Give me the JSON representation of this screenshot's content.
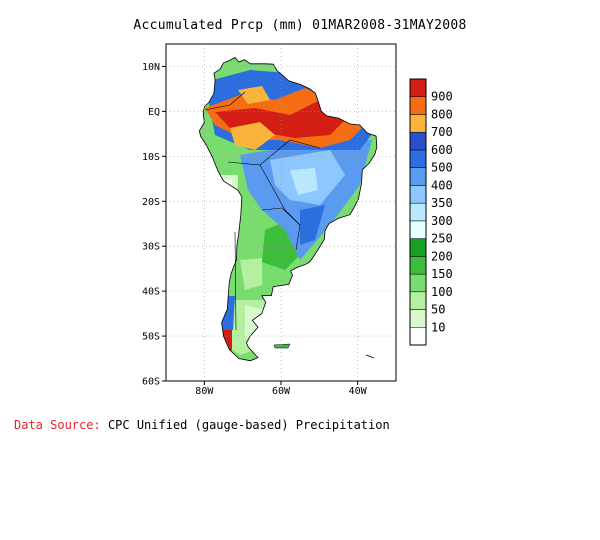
{
  "title": "Accumulated Prcp (mm) 01MAR2008-31MAY2008",
  "lat_labels": [
    "10N",
    "EQ",
    "10S",
    "20S",
    "30S",
    "40S",
    "50S",
    "60S"
  ],
  "lon_labels": [
    "80W",
    "60W",
    "40W"
  ],
  "legend": {
    "levels": [
      "10",
      "50",
      "100",
      "150",
      "200",
      "250",
      "300",
      "350",
      "400",
      "500",
      "600",
      "700",
      "800",
      "900"
    ],
    "colors": [
      "#ffffff",
      "#d7f9cb",
      "#b4f0a0",
      "#78dc6e",
      "#3cbe3c",
      "#19a024",
      "#e6ffff",
      "#bae8ff",
      "#8cc8ff",
      "#5a9bf0",
      "#2d6ede",
      "#2850c8",
      "#fab43c",
      "#f56e14",
      "#d21e14"
    ]
  },
  "data_source": {
    "label": "Data Source:",
    "text": "CPC Unified (gauge-based) Precipitation"
  },
  "chart_data": {
    "type": "heatmap",
    "title": "Accumulated Prcp (mm) 01MAR2008-31MAY2008",
    "variable": "Accumulated Prcp",
    "units": "mm",
    "period": "01MAR2008-31MAY2008",
    "region": "South America",
    "lon_range": [
      -90,
      -30
    ],
    "lat_range": [
      -60,
      15
    ],
    "contour_levels": [
      10,
      50,
      100,
      150,
      200,
      250,
      300,
      350,
      400,
      500,
      600,
      700,
      800,
      900
    ],
    "approx_regions": [
      {
        "area": "Amazon basin / northern Brazil",
        "value_range": [
          600,
          900
        ]
      },
      {
        "area": "Central Brazil",
        "value_range": [
          350,
          500
        ]
      },
      {
        "area": "Southern Brazil / Paraguay",
        "value_range": [
          300,
          500
        ]
      },
      {
        "area": "Argentina pampas",
        "value_range": [
          100,
          250
        ]
      },
      {
        "area": "Patagonia",
        "value_range": [
          10,
          100
        ]
      },
      {
        "area": "Southern Chile coast",
        "value_range": [
          500,
          900
        ]
      }
    ]
  }
}
